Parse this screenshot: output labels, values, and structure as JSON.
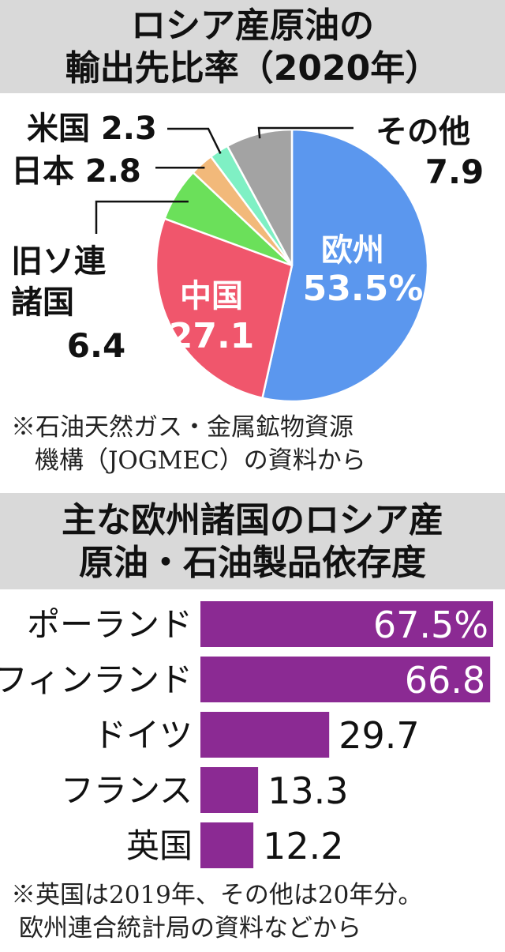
{
  "pie_title": [
    "ロシア産原油の",
    "輸出先比率（2020年）"
  ],
  "pie_note": [
    "※石油天然ガス・金属鉱物資源",
    "機構（JOGMEC）の資料から"
  ],
  "bar_title": [
    "主な欧州諸国のロシア産",
    "原油・石油製品依存度"
  ],
  "bar_note": [
    "※英国は2019年、その他は20年分。",
    "欧州連合統計局の資料などから"
  ],
  "chart_data": [
    {
      "type": "pie",
      "title": "ロシア産原油の輸出先比率（2020年）",
      "start": "12 o'clock, clockwise",
      "slices": [
        {
          "label": "欧州",
          "value": 53.5,
          "value_text": "53.5%",
          "color": "#5b97ee",
          "label_color": "#ffffff"
        },
        {
          "label": "中国",
          "value": 27.1,
          "value_text": "27.1",
          "color": "#f0566c",
          "label_color": "#ffffff"
        },
        {
          "label": "旧ソ連諸国",
          "label_lines": [
            "旧ソ連",
            "諸国"
          ],
          "value": 6.4,
          "value_text": "6.4",
          "color": "#6be05a",
          "label_color": "#111111"
        },
        {
          "label": "日本",
          "value": 2.8,
          "value_text": "2.8",
          "color": "#f2b97a",
          "label_color": "#111111"
        },
        {
          "label": "米国",
          "value": 2.3,
          "value_text": "2.3",
          "color": "#7ff0c4",
          "label_color": "#111111"
        },
        {
          "label": "その他",
          "value": 7.9,
          "value_text": "7.9",
          "color": "#a3a3a3",
          "label_color": "#111111"
        }
      ]
    },
    {
      "type": "bar",
      "orientation": "horizontal",
      "title": "主な欧州諸国のロシア産原油・石油製品依存度",
      "categories": [
        "ポーランド",
        "フィンランド",
        "ドイツ",
        "フランス",
        "英国"
      ],
      "values": [
        67.5,
        66.8,
        29.7,
        13.3,
        12.2
      ],
      "value_labels": [
        "67.5%",
        "66.8",
        "29.7",
        "13.3",
        "12.2"
      ],
      "bar_color": "#8b2a93",
      "xlim": [
        0,
        70
      ]
    }
  ]
}
